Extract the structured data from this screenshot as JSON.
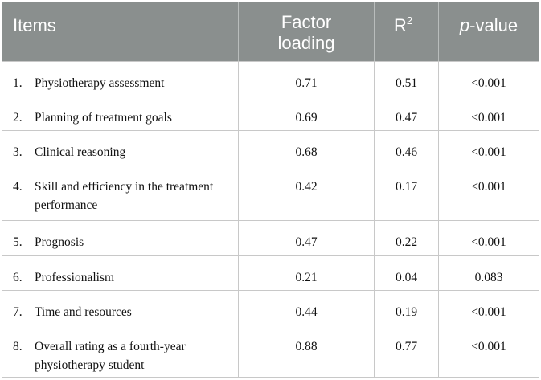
{
  "table": {
    "headers": {
      "items": "Items",
      "factor_line1": "Factor",
      "factor_line2": "loading",
      "r_base": "R",
      "r_sup": "2",
      "p_italic": "p",
      "p_rest": "-value"
    },
    "rows": [
      {
        "num": "1.",
        "label": "Physiotherapy assessment",
        "factor": "0.71",
        "r2": "0.51",
        "p": "<0.001"
      },
      {
        "num": "2.",
        "label": "Planning of treatment goals",
        "factor": "0.69",
        "r2": "0.47",
        "p": "<0.001"
      },
      {
        "num": "3.",
        "label": "Clinical reasoning",
        "factor": "0.68",
        "r2": "0.46",
        "p": "<0.001"
      },
      {
        "num": "4.",
        "label": "Skill and efficiency in the treatment performance",
        "factor": "0.42",
        "r2": "0.17",
        "p": "<0.001"
      },
      {
        "num": "5.",
        "label": "Prognosis",
        "factor": "0.47",
        "r2": "0.22",
        "p": "<0.001"
      },
      {
        "num": "6.",
        "label": "Professionalism",
        "factor": "0.21",
        "r2": "0.04",
        "p": "0.083"
      },
      {
        "num": "7.",
        "label": "Time and resources",
        "factor": "0.44",
        "r2": "0.19",
        "p": "<0.001"
      },
      {
        "num": "8.",
        "label": "Overall rating as a fourth-year physiotherapy student",
        "factor": "0.88",
        "r2": "0.77",
        "p": "<0.001"
      }
    ]
  }
}
